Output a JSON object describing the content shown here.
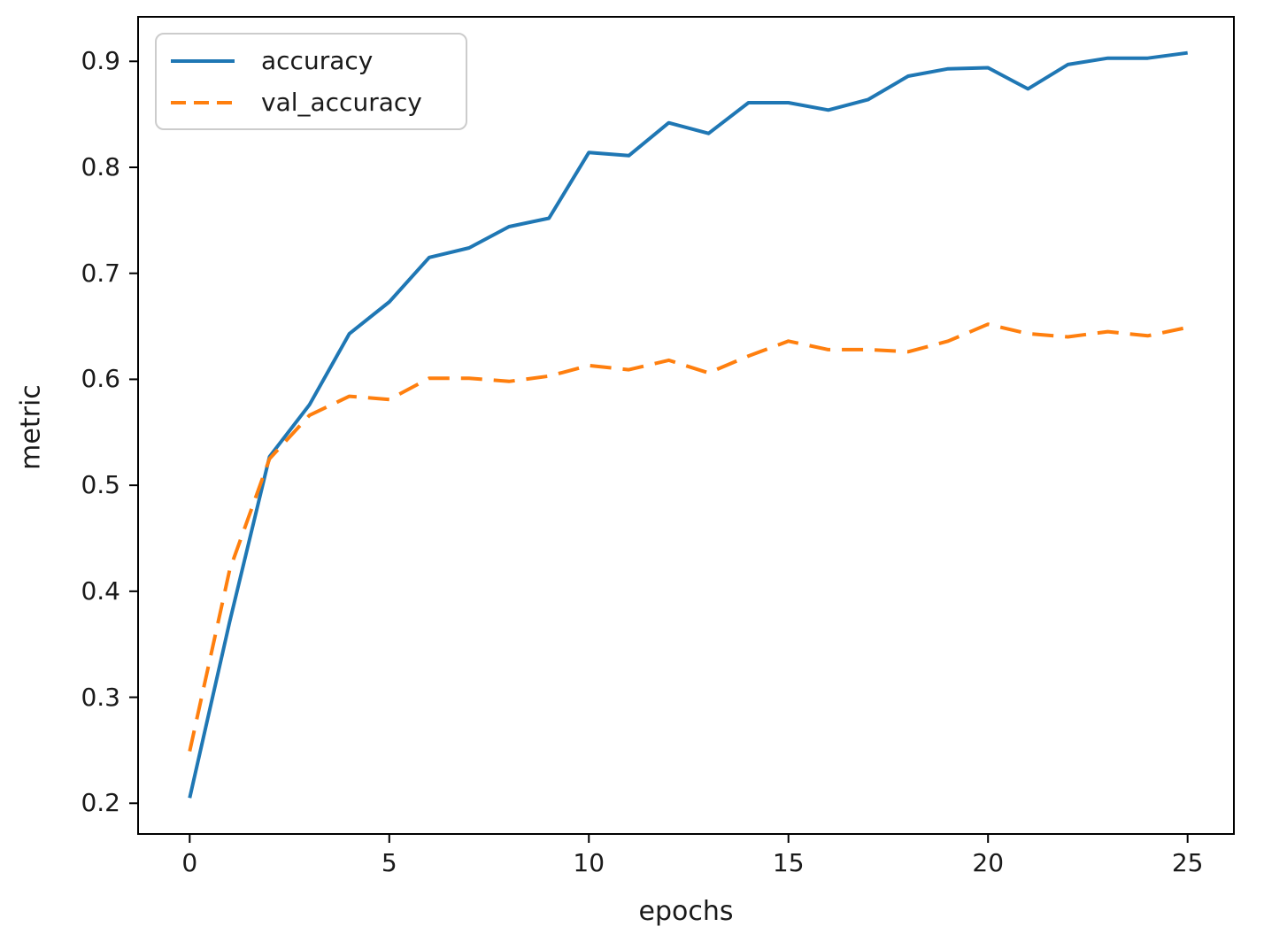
{
  "figure": {
    "background": "#ffffff",
    "spine_color": "#000000",
    "text_color": "#1a1a1a"
  },
  "chart_data": {
    "type": "line",
    "title": "",
    "xlabel": "epochs",
    "ylabel": "metric",
    "grid": false,
    "x": [
      0,
      1,
      2,
      3,
      4,
      5,
      6,
      7,
      8,
      9,
      10,
      11,
      12,
      13,
      14,
      15,
      16,
      17,
      18,
      19,
      20,
      21,
      22,
      23,
      24,
      25
    ],
    "series": [
      {
        "name": "accuracy",
        "color": "#1f77b4",
        "style": "solid",
        "values": [
          0.205,
          0.371,
          0.527,
          0.576,
          0.643,
          0.673,
          0.715,
          0.724,
          0.744,
          0.752,
          0.814,
          0.811,
          0.842,
          0.832,
          0.861,
          0.861,
          0.854,
          0.864,
          0.886,
          0.893,
          0.894,
          0.874,
          0.897,
          0.903,
          0.903,
          0.908
        ]
      },
      {
        "name": "val_accuracy",
        "color": "#ff7f0e",
        "style": "dashed",
        "values": [
          0.249,
          0.42,
          0.525,
          0.566,
          0.584,
          0.581,
          0.601,
          0.601,
          0.598,
          0.603,
          0.613,
          0.609,
          0.618,
          0.606,
          0.622,
          0.636,
          0.628,
          0.628,
          0.626,
          0.636,
          0.652,
          0.643,
          0.64,
          0.645,
          0.641,
          0.649
        ]
      }
    ],
    "xlim": [
      -1.293,
      26.16
    ],
    "ylim": [
      0.171,
      0.942
    ],
    "xticks": [
      0,
      5,
      10,
      15,
      20,
      25
    ],
    "xtick_labels": [
      "0",
      "5",
      "10",
      "15",
      "20",
      "25"
    ],
    "yticks": [
      0.2,
      0.3,
      0.4,
      0.5,
      0.6,
      0.7,
      0.8,
      0.9
    ],
    "ytick_labels": [
      "0.2",
      "0.3",
      "0.4",
      "0.5",
      "0.6",
      "0.7",
      "0.8",
      "0.9"
    ],
    "legend": {
      "position": "upper left",
      "entries": [
        "accuracy",
        "val_accuracy"
      ]
    }
  }
}
